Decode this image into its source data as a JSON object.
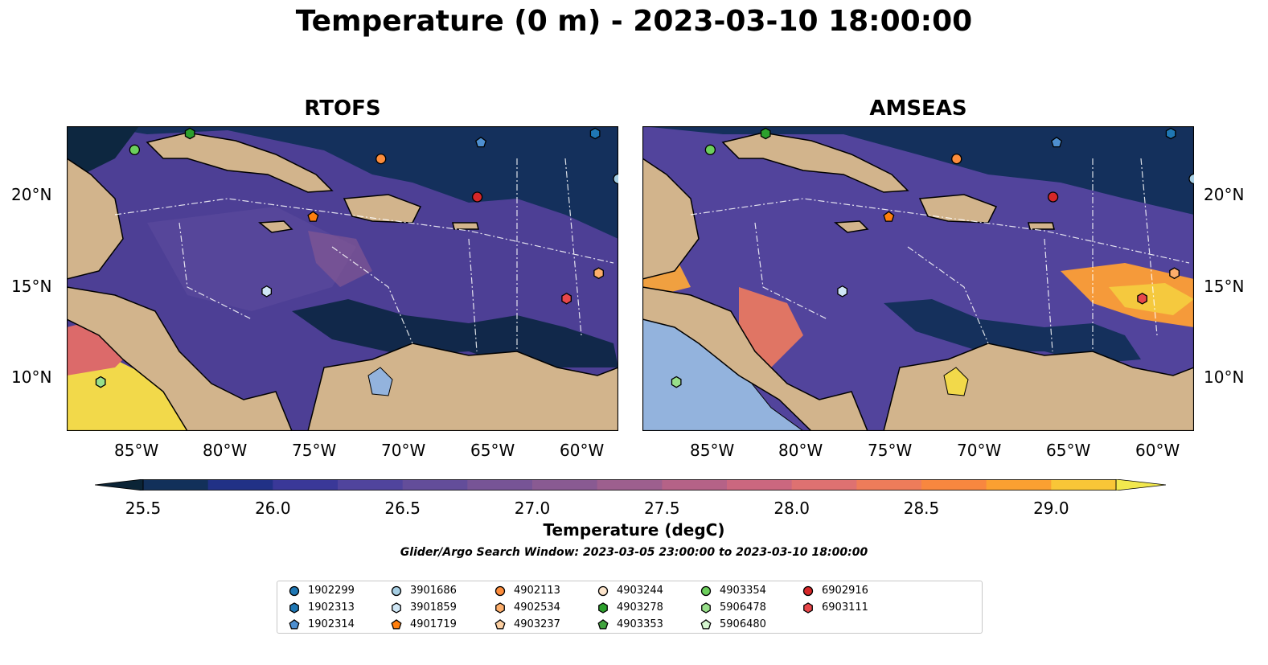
{
  "title": "Temperature (0 m) - 2023-03-10 18:00:00",
  "panels": [
    {
      "title": "RTOFS"
    },
    {
      "title": "AMSEAS"
    }
  ],
  "lat_labels": [
    "20°N",
    "15°N",
    "10°N"
  ],
  "lon_labels": [
    "85°W",
    "80°W",
    "75°W",
    "70°W",
    "65°W",
    "60°W"
  ],
  "colorbar": {
    "label": "Temperature (degC)",
    "ticks": [
      "25.5",
      "26.0",
      "26.5",
      "27.0",
      "27.5",
      "28.0",
      "28.5",
      "29.0"
    ],
    "min": 25.5,
    "max": 29.25,
    "step": 0.25,
    "colors": [
      "#0b2436",
      "#12305a",
      "#213186",
      "#3a3898",
      "#50449d",
      "#634d9a",
      "#775496",
      "#895a92",
      "#9d5f8e",
      "#b56287",
      "#cb677f",
      "#de7171",
      "#ee7c5a",
      "#f8873f",
      "#fba031",
      "#f9c637",
      "#f2e84e"
    ],
    "extend": "both"
  },
  "search_window": "Glider/Argo Search Window: 2023-03-05 23:00:00 to 2023-03-10 18:00:00",
  "legend": [
    {
      "id": "1902299",
      "color": "#1f77b4",
      "shape": "circle"
    },
    {
      "id": "1902313",
      "color": "#1f77b4",
      "shape": "hexagon"
    },
    {
      "id": "1902314",
      "color": "#4e8fd0",
      "shape": "pentagon"
    },
    {
      "id": "3901686",
      "color": "#a6cee3",
      "shape": "circle"
    },
    {
      "id": "3901859",
      "color": "#cfe6f5",
      "shape": "hexagon"
    },
    {
      "id": "4901719",
      "color": "#ff7f0e",
      "shape": "pentagon"
    },
    {
      "id": "4902113",
      "color": "#fd8d3c",
      "shape": "circle"
    },
    {
      "id": "4902534",
      "color": "#fdae6b",
      "shape": "hexagon"
    },
    {
      "id": "4903237",
      "color": "#fdd0a2",
      "shape": "pentagon"
    },
    {
      "id": "4903244",
      "color": "#fde5cc",
      "shape": "circle"
    },
    {
      "id": "4903278",
      "color": "#2ca02c",
      "shape": "hexagon"
    },
    {
      "id": "4903353",
      "color": "#41a33e",
      "shape": "pentagon"
    },
    {
      "id": "4903354",
      "color": "#6ccf5c",
      "shape": "circle"
    },
    {
      "id": "5906478",
      "color": "#98df8a",
      "shape": "hexagon"
    },
    {
      "id": "5906480",
      "color": "#d5f5cf",
      "shape": "pentagon"
    },
    {
      "id": "6902916",
      "color": "#d62728",
      "shape": "circle"
    },
    {
      "id": "6903111",
      "color": "#e8474a",
      "shape": "hexagon"
    }
  ],
  "floats_on_map": [
    {
      "id": "4903278",
      "lon": -82.3,
      "lat": 23.4
    },
    {
      "id": "4903354",
      "lon": -85.4,
      "lat": 22.5
    },
    {
      "id": "4902113",
      "lon": -71.6,
      "lat": 22.0
    },
    {
      "id": "1902314",
      "lon": -66.0,
      "lat": 22.9
    },
    {
      "id": "1902313",
      "lon": -59.6,
      "lat": 23.4
    },
    {
      "id": "3901686",
      "lon": -58.3,
      "lat": 20.9
    },
    {
      "id": "6902916",
      "lon": -66.2,
      "lat": 19.9
    },
    {
      "id": "4901719",
      "lon": -75.4,
      "lat": 18.8
    },
    {
      "id": "3901859",
      "lon": -78.0,
      "lat": 14.7
    },
    {
      "id": "6903111",
      "lon": -61.2,
      "lat": 14.3
    },
    {
      "id": "4902534",
      "lon": -59.4,
      "lat": 15.7
    },
    {
      "id": "5906478",
      "lon": -87.3,
      "lat": 9.7
    }
  ]
}
